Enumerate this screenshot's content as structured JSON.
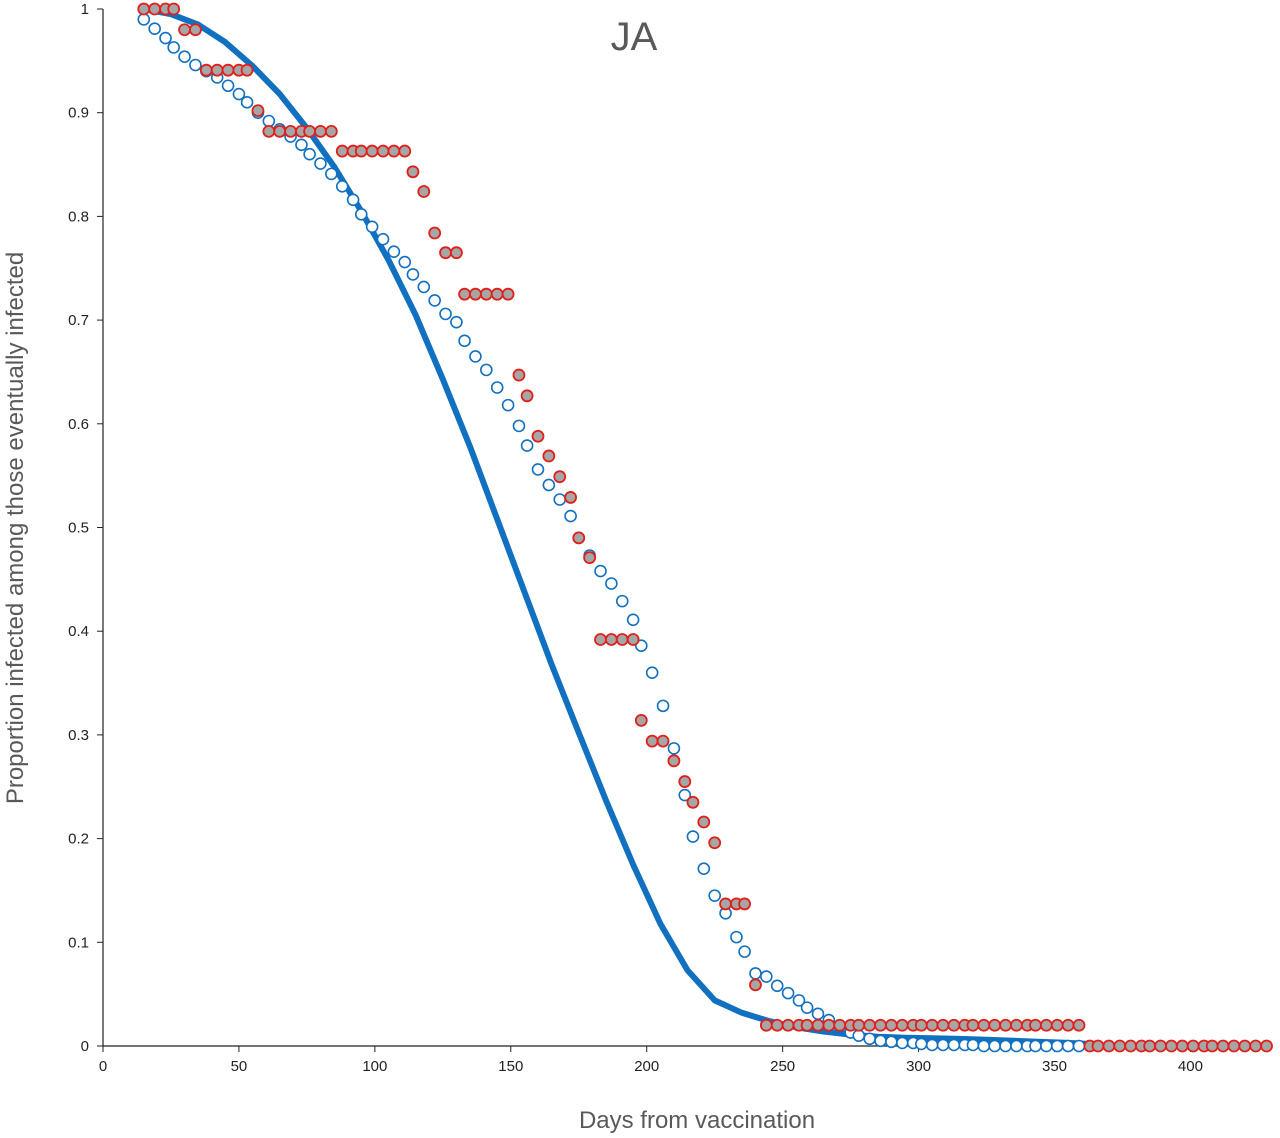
{
  "chart_data": {
    "type": "scatter",
    "title": "JA",
    "xlabel": "Days from vaccination",
    "ylabel": "Proportion infected among those eventually infected",
    "xlim": [
      0,
      430
    ],
    "ylim": [
      0,
      1
    ],
    "x_ticks": [
      "0",
      "50",
      "100",
      "150",
      "200",
      "250",
      "300",
      "350",
      "400"
    ],
    "y_ticks": [
      "0",
      "0.1",
      "0.2",
      "0.3",
      "0.4",
      "0.5",
      "0.6",
      "0.7",
      "0.8",
      "0.9",
      "1"
    ],
    "grid": false,
    "legend": "none",
    "colors": {
      "fitted_curve": "#1170c0",
      "model_points": "#1170c0",
      "observed_fill": "#a6a6a6",
      "observed_edge": "#e0201b",
      "axis": "#222222"
    },
    "series": [
      {
        "kind": "observed",
        "style": "filled-circle",
        "x": [
          15,
          19,
          23,
          26,
          30,
          34,
          38,
          42,
          46,
          50,
          53,
          57,
          61,
          65,
          69,
          73,
          76,
          80,
          84,
          88,
          92,
          95,
          99,
          103,
          107,
          111,
          114,
          118,
          122,
          126,
          130,
          133,
          137,
          141,
          145,
          149,
          153,
          156,
          160,
          164,
          168,
          172,
          175,
          179,
          183,
          187,
          191,
          195,
          198,
          202,
          206,
          210,
          214,
          217,
          221,
          225,
          229,
          233,
          236,
          240,
          244,
          248,
          252,
          256,
          259,
          263,
          267,
          271,
          275,
          278,
          282,
          286,
          290,
          294,
          298,
          301,
          305,
          309,
          313,
          317,
          320,
          324,
          328,
          332,
          336,
          340,
          343,
          347,
          351,
          355,
          359,
          363,
          366,
          370,
          374,
          378,
          382,
          385,
          389,
          393,
          397,
          401,
          405,
          408,
          412,
          416,
          420,
          424,
          428
        ],
        "y": [
          1.0,
          1.0,
          1.0,
          1.0,
          0.98,
          0.98,
          0.941,
          0.941,
          0.941,
          0.941,
          0.941,
          0.902,
          0.882,
          0.882,
          0.882,
          0.882,
          0.882,
          0.882,
          0.882,
          0.863,
          0.863,
          0.863,
          0.863,
          0.863,
          0.863,
          0.863,
          0.843,
          0.824,
          0.784,
          0.765,
          0.765,
          0.725,
          0.725,
          0.725,
          0.725,
          0.725,
          0.647,
          0.627,
          0.588,
          0.569,
          0.549,
          0.529,
          0.49,
          0.471,
          0.392,
          0.392,
          0.392,
          0.392,
          0.314,
          0.294,
          0.294,
          0.275,
          0.255,
          0.235,
          0.216,
          0.196,
          0.137,
          0.137,
          0.137,
          0.059,
          0.02,
          0.02,
          0.02,
          0.02,
          0.02,
          0.02,
          0.02,
          0.02,
          0.02,
          0.02,
          0.02,
          0.02,
          0.02,
          0.02,
          0.02,
          0.02,
          0.02,
          0.02,
          0.02,
          0.02,
          0.02,
          0.02,
          0.02,
          0.02,
          0.02,
          0.02,
          0.02,
          0.02,
          0.02,
          0.02,
          0.02,
          0.0,
          0.0,
          0.0,
          0.0,
          0.0,
          0.0,
          0.0,
          0.0,
          0.0,
          0.0,
          0.0,
          0.0,
          0.0,
          0.0,
          0.0,
          0.0,
          0.0,
          0.0
        ]
      },
      {
        "kind": "model",
        "style": "open-circle",
        "x": [
          15,
          19,
          23,
          26,
          30,
          34,
          38,
          42,
          46,
          50,
          53,
          57,
          61,
          65,
          69,
          73,
          76,
          80,
          84,
          88,
          92,
          95,
          99,
          103,
          107,
          111,
          114,
          118,
          122,
          126,
          130,
          133,
          137,
          141,
          145,
          149,
          153,
          156,
          160,
          164,
          168,
          172,
          175,
          179,
          183,
          187,
          191,
          195,
          198,
          202,
          206,
          210,
          214,
          217,
          221,
          225,
          229,
          233,
          236,
          240,
          244,
          248,
          252,
          256,
          259,
          263,
          267,
          271,
          275,
          278,
          282,
          286,
          290,
          294,
          298,
          301,
          305,
          309,
          313,
          317,
          320,
          324,
          328,
          332,
          336,
          340,
          343,
          347,
          351,
          355,
          359
        ],
        "y": [
          0.99,
          0.981,
          0.972,
          0.963,
          0.954,
          0.946,
          0.94,
          0.934,
          0.926,
          0.918,
          0.91,
          0.9,
          0.892,
          0.884,
          0.877,
          0.869,
          0.86,
          0.851,
          0.841,
          0.829,
          0.816,
          0.802,
          0.79,
          0.778,
          0.766,
          0.756,
          0.744,
          0.732,
          0.719,
          0.706,
          0.698,
          0.68,
          0.665,
          0.652,
          0.635,
          0.618,
          0.598,
          0.579,
          0.556,
          0.541,
          0.527,
          0.511,
          0.49,
          0.473,
          0.458,
          0.446,
          0.429,
          0.411,
          0.386,
          0.36,
          0.328,
          0.287,
          0.242,
          0.202,
          0.171,
          0.145,
          0.128,
          0.105,
          0.091,
          0.07,
          0.067,
          0.058,
          0.051,
          0.044,
          0.037,
          0.031,
          0.025,
          0.019,
          0.013,
          0.01,
          0.007,
          0.005,
          0.004,
          0.003,
          0.003,
          0.002,
          0.001,
          0.001,
          0.001,
          0.001,
          0.001,
          0.0,
          0.0,
          0.0,
          0.0,
          0.0,
          0.0,
          0.0,
          0.0,
          0.0,
          0.0
        ]
      },
      {
        "kind": "fitted",
        "style": "line",
        "x": [
          15,
          25,
          35,
          45,
          55,
          65,
          75,
          85,
          95,
          105,
          115,
          125,
          135,
          145,
          155,
          165,
          175,
          185,
          195,
          205,
          215,
          225,
          235,
          245,
          255,
          265,
          275,
          285,
          295,
          305,
          315,
          325,
          335,
          345,
          355,
          362
        ],
        "y": [
          1.0,
          0.995,
          0.985,
          0.968,
          0.945,
          0.918,
          0.885,
          0.848,
          0.805,
          0.758,
          0.705,
          0.643,
          0.578,
          0.508,
          0.438,
          0.368,
          0.302,
          0.237,
          0.175,
          0.118,
          0.073,
          0.044,
          0.032,
          0.024,
          0.018,
          0.014,
          0.011,
          0.009,
          0.008,
          0.0075,
          0.0068,
          0.006,
          0.005,
          0.004,
          0.003,
          0.002
        ]
      }
    ]
  }
}
